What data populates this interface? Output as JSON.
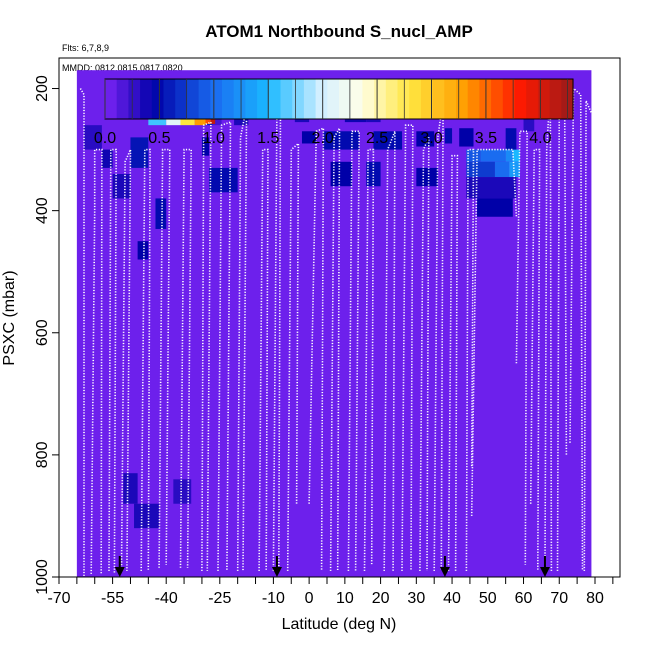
{
  "chart_data": {
    "type": "heatmap",
    "title": "ATOM1 Northbound S_nucl_AMP",
    "note_flights": "Flts: 6,7,8,9",
    "note_dates": "MMDD: 0812,0815,0817,0820",
    "xlabel": "Latitude (deg N)",
    "ylabel": "PSXC (mbar)",
    "xlim": [
      -70,
      87
    ],
    "ylim": [
      1000,
      150
    ],
    "x_ticks": [
      -70,
      -55,
      -40,
      -25,
      -10,
      0,
      10,
      20,
      30,
      40,
      50,
      60,
      70,
      80
    ],
    "x_tick_labels": [
      "-70",
      "-55",
      "-40",
      "-25",
      "-10",
      "0",
      "10",
      "20",
      "30",
      "40",
      "50",
      "60",
      "70",
      "80"
    ],
    "y_ticks": [
      200,
      400,
      600,
      800,
      1000
    ],
    "y_tick_labels": [
      "200",
      "400",
      "600",
      "800",
      "1000"
    ],
    "colorbar": {
      "range": [
        0,
        4.3
      ],
      "ticks": [
        0,
        0.5,
        1,
        1.5,
        2,
        2.5,
        3,
        3.5,
        4
      ],
      "tick_labels": [
        "0.0",
        "0.5",
        "1.0",
        "1.5",
        "2.0",
        "2.5",
        "3.0",
        "3.5",
        "4.0"
      ],
      "stops": [
        {
          "v": 0.0,
          "c": "#7b24f5"
        },
        {
          "v": 0.45,
          "c": "#0000a8"
        },
        {
          "v": 1.0,
          "c": "#1a6cf0"
        },
        {
          "v": 1.5,
          "c": "#1ab8ff"
        },
        {
          "v": 2.0,
          "c": "#d6f0ff"
        },
        {
          "v": 2.35,
          "c": "#ffffe8"
        },
        {
          "v": 2.8,
          "c": "#ffe640"
        },
        {
          "v": 3.3,
          "c": "#ff9d00"
        },
        {
          "v": 3.8,
          "c": "#ff1a00"
        },
        {
          "v": 4.3,
          "c": "#9a1a1a"
        }
      ]
    },
    "background_value": 0.05,
    "domain_top_mbar": 170,
    "domain_lat": [
      -65,
      79
    ],
    "cells": [
      {
        "lat": [
          -50,
          -45
        ],
        "p": [
          280,
          330
        ],
        "v": 0.55
      },
      {
        "lat": [
          -43,
          -40
        ],
        "p": [
          380,
          430
        ],
        "v": 0.5
      },
      {
        "lat": [
          -48,
          -45
        ],
        "p": [
          450,
          480
        ],
        "v": 0.45
      },
      {
        "lat": [
          -45,
          -40
        ],
        "p": [
          220,
          260
        ],
        "v": 1.6
      },
      {
        "lat": [
          -40,
          -36
        ],
        "p": [
          220,
          260
        ],
        "v": 2.1
      },
      {
        "lat": [
          -36,
          -32
        ],
        "p": [
          220,
          260
        ],
        "v": 2.8
      },
      {
        "lat": [
          -32,
          -29
        ],
        "p": [
          220,
          260
        ],
        "v": 3.3
      },
      {
        "lat": [
          -29,
          -27
        ],
        "p": [
          220,
          260
        ],
        "v": 0.6
      },
      {
        "lat": [
          -27,
          -24.5
        ],
        "p": [
          220,
          260
        ],
        "v": 0.2
      },
      {
        "lat": [
          -29,
          -27.5
        ],
        "p": [
          222,
          258
        ],
        "v": 3.6
      },
      {
        "lat": [
          -27.5,
          -26.3
        ],
        "p": [
          222,
          258
        ],
        "v": 4.1
      },
      {
        "lat": [
          -21,
          -17
        ],
        "p": [
          230,
          260
        ],
        "v": 0.35
      },
      {
        "lat": [
          -28,
          -20
        ],
        "p": [
          330,
          370
        ],
        "v": 0.5
      },
      {
        "lat": [
          -30,
          -28
        ],
        "p": [
          280,
          310
        ],
        "v": 0.45
      },
      {
        "lat": [
          -8,
          -4
        ],
        "p": [
          220,
          250
        ],
        "v": 0.35
      },
      {
        "lat": [
          -4,
          0
        ],
        "p": [
          225,
          255
        ],
        "v": 0.35
      },
      {
        "lat": [
          2,
          8
        ],
        "p": [
          225,
          250
        ],
        "v": 0.35
      },
      {
        "lat": [
          10,
          16
        ],
        "p": [
          225,
          255
        ],
        "v": 0.4
      },
      {
        "lat": [
          16,
          20
        ],
        "p": [
          225,
          255
        ],
        "v": 0.35
      },
      {
        "lat": [
          20,
          28
        ],
        "p": [
          225,
          250
        ],
        "v": 0.35
      },
      {
        "lat": [
          30,
          34
        ],
        "p": [
          225,
          250
        ],
        "v": 0.4
      },
      {
        "lat": [
          -2,
          2
        ],
        "p": [
          270,
          290
        ],
        "v": 0.45
      },
      {
        "lat": [
          4,
          14
        ],
        "p": [
          270,
          300
        ],
        "v": 0.5
      },
      {
        "lat": [
          18,
          26
        ],
        "p": [
          270,
          300
        ],
        "v": 0.5
      },
      {
        "lat": [
          30,
          35
        ],
        "p": [
          270,
          295
        ],
        "v": 0.45
      },
      {
        "lat": [
          38,
          40
        ],
        "p": [
          265,
          290
        ],
        "v": 0.5
      },
      {
        "lat": [
          42,
          46
        ],
        "p": [
          265,
          295
        ],
        "v": 0.45
      },
      {
        "lat": [
          6,
          12
        ],
        "p": [
          320,
          360
        ],
        "v": 0.45
      },
      {
        "lat": [
          16,
          20
        ],
        "p": [
          320,
          360
        ],
        "v": 0.5
      },
      {
        "lat": [
          30,
          36
        ],
        "p": [
          330,
          360
        ],
        "v": 0.45
      },
      {
        "lat": [
          44,
          48
        ],
        "p": [
          300,
          320
        ],
        "v": 0.9
      },
      {
        "lat": [
          48,
          55
        ],
        "p": [
          300,
          320
        ],
        "v": 1.0
      },
      {
        "lat": [
          55,
          57
        ],
        "p": [
          300,
          320
        ],
        "v": 1.2
      },
      {
        "lat": [
          57,
          59
        ],
        "p": [
          300,
          320
        ],
        "v": 1.5
      },
      {
        "lat": [
          44,
          52
        ],
        "p": [
          320,
          345
        ],
        "v": 0.75
      },
      {
        "lat": [
          52,
          56
        ],
        "p": [
          320,
          345
        ],
        "v": 1.0
      },
      {
        "lat": [
          56,
          59
        ],
        "p": [
          320,
          345
        ],
        "v": 1.3
      },
      {
        "lat": [
          44,
          58
        ],
        "p": [
          345,
          380
        ],
        "v": 0.35
      },
      {
        "lat": [
          47,
          57
        ],
        "p": [
          380,
          410
        ],
        "v": 0.45
      },
      {
        "lat": [
          55,
          58
        ],
        "p": [
          265,
          300
        ],
        "v": 0.5
      },
      {
        "lat": [
          -55,
          -50
        ],
        "p": [
          340,
          380
        ],
        "v": 0.35
      },
      {
        "lat": [
          -58,
          -55
        ],
        "p": [
          300,
          330
        ],
        "v": 0.4
      },
      {
        "lat": [
          -63,
          -58
        ],
        "p": [
          260,
          300
        ],
        "v": 0.3
      },
      {
        "lat": [
          -52,
          -48
        ],
        "p": [
          830,
          880
        ],
        "v": 0.35
      },
      {
        "lat": [
          -49,
          -42
        ],
        "p": [
          880,
          920
        ],
        "v": 0.35
      },
      {
        "lat": [
          -38,
          -33
        ],
        "p": [
          840,
          880
        ],
        "v": 0.3
      },
      {
        "lat": [
          -47,
          -43
        ],
        "p": [
          200,
          230
        ],
        "v": 0.3
      },
      {
        "lat": [
          60,
          63
        ],
        "p": [
          240,
          270
        ],
        "v": 0.3
      }
    ],
    "profiles": [
      {
        "lat": [
          -63,
          -62
        ],
        "p": [
          [
            200,
            -64
          ],
          [
            210,
            -63
          ],
          [
            1000,
            -63
          ]
        ]
      },
      {
        "lat": [
          -60,
          -58
        ],
        "p": [
          [
            995,
            -61
          ],
          [
            400,
            -60
          ],
          [
            300,
            -60
          ],
          [
            300,
            -58
          ],
          [
            995,
            -58.2
          ]
        ]
      },
      {
        "lat": [
          -56,
          -55
        ],
        "p": [
          [
            990,
            -56
          ],
          [
            300,
            -55.5
          ],
          [
            300,
            -54
          ],
          [
            995,
            -54.5
          ]
        ]
      },
      {
        "lat": [
          -52,
          -50
        ],
        "p": [
          [
            990,
            -52.5
          ],
          [
            320,
            -51.5
          ],
          [
            300,
            -50
          ],
          [
            990,
            -51
          ]
        ]
      },
      {
        "lat": [
          -47,
          -45
        ],
        "p": [
          [
            990,
            -47
          ],
          [
            300,
            -46
          ],
          [
            300,
            -44.5
          ],
          [
            990,
            -45
          ]
        ]
      },
      {
        "lat": [
          -42,
          -40
        ],
        "p": [
          [
            985,
            -42
          ],
          [
            300,
            -41
          ],
          [
            300,
            -39
          ],
          [
            980,
            -40
          ]
        ]
      },
      {
        "lat": [
          -36,
          -34
        ],
        "p": [
          [
            985,
            -36
          ],
          [
            300,
            -35
          ],
          [
            300,
            -33
          ],
          [
            985,
            -34
          ]
        ]
      },
      {
        "lat": [
          -30,
          -28
        ],
        "p": [
          [
            990,
            -30
          ],
          [
            260,
            -29.5
          ],
          [
            255,
            -27.5
          ],
          [
            990,
            -28.5
          ]
        ]
      },
      {
        "lat": [
          -25,
          -23
        ],
        "p": [
          [
            990,
            -25.5
          ],
          [
            260,
            -24.5
          ],
          [
            255,
            -22
          ],
          [
            990,
            -23
          ]
        ]
      },
      {
        "lat": [
          -20,
          -18
        ],
        "p": [
          [
            990,
            -20
          ],
          [
            280,
            -19.2
          ],
          [
            230,
            -17.5
          ],
          [
            990,
            -18.5
          ]
        ]
      },
      {
        "lat": [
          -14,
          -12
        ],
        "p": [
          [
            990,
            -14
          ],
          [
            300,
            -13
          ],
          [
            300,
            -11.5
          ],
          [
            990,
            -12
          ]
        ]
      },
      {
        "lat": [
          -10,
          -8
        ],
        "p": [
          [
            990,
            -10
          ],
          [
            220,
            -9
          ],
          [
            220,
            -8
          ],
          [
            990,
            -8.5
          ]
        ]
      },
      {
        "lat": [
          -6,
          -3
        ],
        "p": [
          [
            990,
            -6
          ],
          [
            300,
            -5
          ],
          [
            290,
            -3
          ],
          [
            880,
            -3.5
          ]
        ]
      },
      {
        "lat": [
          0,
          3
        ],
        "p": [
          [
            880,
            0
          ],
          [
            270,
            2
          ],
          [
            265,
            4
          ],
          [
            990,
            3.5
          ]
        ]
      },
      {
        "lat": [
          6,
          8
        ],
        "p": [
          [
            990,
            6
          ],
          [
            280,
            7
          ],
          [
            265,
            8.5
          ],
          [
            990,
            8
          ]
        ]
      },
      {
        "lat": [
          11,
          13
        ],
        "p": [
          [
            990,
            11
          ],
          [
            270,
            12
          ],
          [
            270,
            14
          ],
          [
            990,
            13
          ]
        ]
      },
      {
        "lat": [
          15,
          17
        ],
        "p": [
          [
            990,
            15.5
          ],
          [
            300,
            16.5
          ],
          [
            300,
            18
          ],
          [
            980,
            17.5
          ]
        ]
      },
      {
        "lat": [
          21,
          23
        ],
        "p": [
          [
            990,
            21
          ],
          [
            300,
            22
          ],
          [
            270,
            24
          ],
          [
            990,
            23.5
          ]
        ]
      },
      {
        "lat": [
          26,
          28
        ],
        "p": [
          [
            990,
            26
          ],
          [
            260,
            27
          ],
          [
            260,
            29
          ],
          [
            990,
            28.5
          ]
        ]
      },
      {
        "lat": [
          31,
          33
        ],
        "p": [
          [
            990,
            31
          ],
          [
            300,
            32
          ],
          [
            280,
            33.5
          ],
          [
            990,
            33
          ]
        ]
      },
      {
        "lat": [
          35,
          37
        ],
        "p": [
          [
            990,
            35
          ],
          [
            280,
            36
          ],
          [
            220,
            37.5
          ],
          [
            990,
            37
          ]
        ]
      },
      {
        "lat": [
          39,
          41
        ],
        "p": [
          [
            990,
            39
          ],
          [
            310,
            40
          ],
          [
            310,
            41.5
          ],
          [
            990,
            41
          ]
        ]
      },
      {
        "lat": [
          44,
          46
        ],
        "p": [
          [
            990,
            44
          ],
          [
            300,
            44.5
          ],
          [
            300,
            46
          ],
          [
            820,
            45.5
          ]
        ]
      },
      {
        "lat": [
          47,
          57
        ],
        "p": [
          [
            900,
            45.5
          ],
          [
            300,
            47
          ],
          [
            300,
            57
          ],
          [
            410,
            58
          ]
        ]
      },
      {
        "lat": [
          58,
          61
        ],
        "p": [
          [
            650,
            58
          ],
          [
            270,
            59
          ],
          [
            270,
            61
          ],
          [
            980,
            60.5
          ]
        ]
      },
      {
        "lat": [
          62,
          65
        ],
        "p": [
          [
            880,
            62
          ],
          [
            300,
            63
          ],
          [
            300,
            64.5
          ],
          [
            990,
            64
          ]
        ]
      },
      {
        "lat": [
          66,
          68
        ],
        "p": [
          [
            980,
            66
          ],
          [
            300,
            66.5
          ],
          [
            200,
            67.5
          ],
          [
            990,
            67.8
          ]
        ]
      },
      {
        "lat": [
          70,
          72
        ],
        "p": [
          [
            990,
            69.5
          ],
          [
            220,
            70
          ],
          [
            200,
            71.5
          ],
          [
            800,
            72
          ]
        ]
      },
      {
        "lat": [
          73,
          76
        ],
        "p": [
          [
            780,
            73
          ],
          [
            200,
            74
          ],
          [
            210,
            76
          ],
          [
            990,
            76.5
          ]
        ]
      },
      {
        "lat": [
          77,
          79
        ],
        "p": [
          [
            990,
            77
          ],
          [
            220,
            77.5
          ],
          [
            240,
            79
          ]
        ]
      }
    ],
    "arrows_lat": [
      -53,
      -9,
      38,
      66
    ]
  }
}
